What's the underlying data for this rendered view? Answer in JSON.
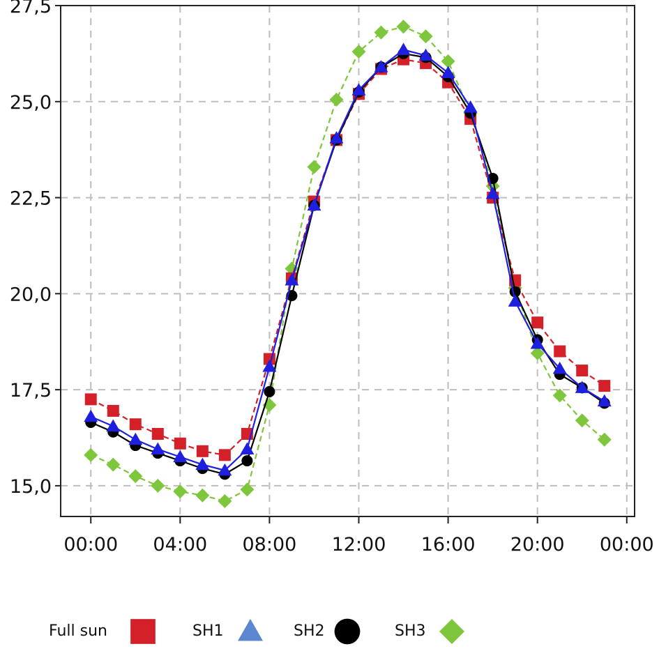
{
  "chart_data": {
    "type": "line",
    "title": "",
    "xlabel": "",
    "ylabel": "",
    "x": [
      0,
      1,
      2,
      3,
      4,
      5,
      6,
      7,
      8,
      9,
      10,
      11,
      12,
      13,
      14,
      15,
      16,
      17,
      18,
      19,
      20,
      21,
      22,
      23
    ],
    "xticks": [
      {
        "value": 0,
        "label": "00:00"
      },
      {
        "value": 4,
        "label": "04:00"
      },
      {
        "value": 8,
        "label": "08:00"
      },
      {
        "value": 12,
        "label": "12:00"
      },
      {
        "value": 16,
        "label": "16:00"
      },
      {
        "value": 20,
        "label": "20:00"
      },
      {
        "value": 24,
        "label": "00:00"
      }
    ],
    "yticks": [
      {
        "value": 15.0,
        "label": "15,0"
      },
      {
        "value": 17.5,
        "label": "17,5"
      },
      {
        "value": 20.0,
        "label": "20,0"
      },
      {
        "value": 22.5,
        "label": "22,5"
      },
      {
        "value": 25.0,
        "label": "25,0"
      },
      {
        "value": 27.5,
        "label": "27,5"
      }
    ],
    "xlim": [
      -1.35,
      24.35
    ],
    "ylim": [
      14.2,
      27.5
    ],
    "grid": true,
    "legend_position": "bottom",
    "series": [
      {
        "name": "Full sun",
        "marker": "square",
        "color": "#d42028",
        "line_dash": "dashed",
        "values": [
          17.25,
          16.95,
          16.6,
          16.35,
          16.1,
          15.9,
          15.8,
          16.35,
          18.3,
          20.4,
          22.4,
          24.0,
          25.2,
          25.85,
          26.1,
          26.0,
          25.5,
          24.55,
          22.5,
          20.35,
          19.25,
          18.5,
          18.0,
          17.6
        ]
      },
      {
        "name": "SH1",
        "marker": "triangle",
        "color": "#1f1fe0",
        "legend_color": "#5a87cf",
        "line_dash": "solid",
        "values": [
          16.8,
          16.55,
          16.2,
          15.95,
          15.75,
          15.55,
          15.4,
          15.95,
          18.1,
          20.35,
          22.3,
          24.05,
          25.3,
          25.9,
          26.35,
          26.2,
          25.75,
          24.85,
          22.6,
          19.8,
          18.7,
          18.05,
          17.55,
          17.2
        ]
      },
      {
        "name": "SH2",
        "marker": "circle",
        "color": "#000000",
        "line_dash": "solid",
        "values": [
          16.65,
          16.4,
          16.05,
          15.85,
          15.65,
          15.45,
          15.3,
          15.65,
          17.45,
          19.95,
          22.3,
          24.0,
          25.25,
          25.9,
          26.25,
          26.15,
          25.65,
          24.7,
          23.0,
          20.05,
          18.8,
          17.9,
          17.55,
          17.15
        ]
      },
      {
        "name": "SH3",
        "marker": "diamond",
        "color": "#7ec63c",
        "line_dash": "dashed",
        "values": [
          15.8,
          15.55,
          15.25,
          15.0,
          14.85,
          14.75,
          14.6,
          14.9,
          17.1,
          20.65,
          23.3,
          25.05,
          26.3,
          26.8,
          26.95,
          26.7,
          26.05,
          24.7,
          22.8,
          20.15,
          18.45,
          17.35,
          16.7,
          16.2
        ]
      }
    ]
  }
}
